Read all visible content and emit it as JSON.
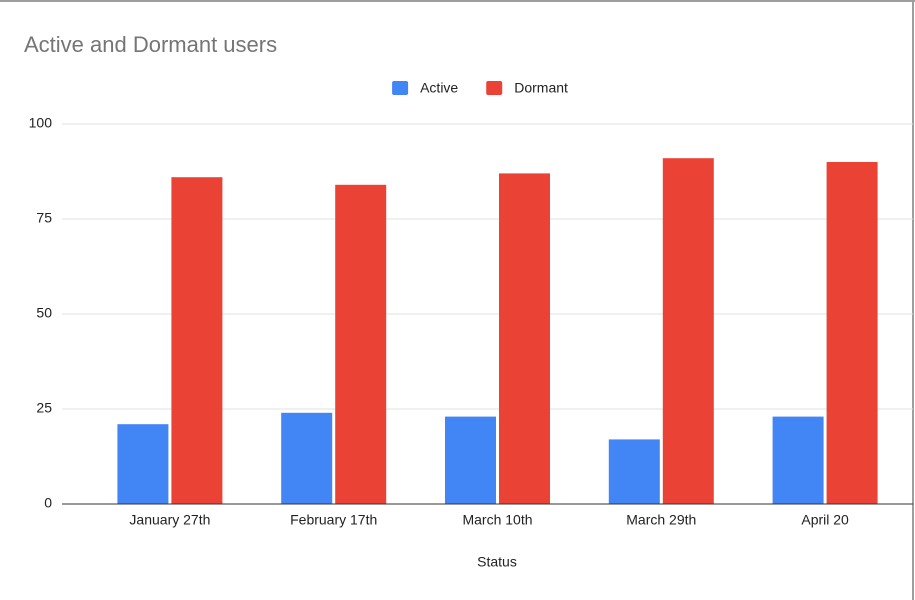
{
  "chart_data": {
    "type": "bar",
    "title": "Active and Dormant users",
    "x_label": "Status",
    "categories": [
      "January 27th",
      "February 17th",
      "March 10th",
      "March 29th",
      "April 20"
    ],
    "series": [
      {
        "name": "Active",
        "color": "#4285f4",
        "values": [
          21,
          24,
          23,
          17,
          23
        ]
      },
      {
        "name": "Dormant",
        "color": "#ea4335",
        "values": [
          86,
          84,
          87,
          91,
          90
        ]
      }
    ],
    "ylim": [
      0,
      100
    ],
    "yticks": [
      0,
      25,
      50,
      75,
      100
    ],
    "grid": true,
    "legend": "top"
  }
}
